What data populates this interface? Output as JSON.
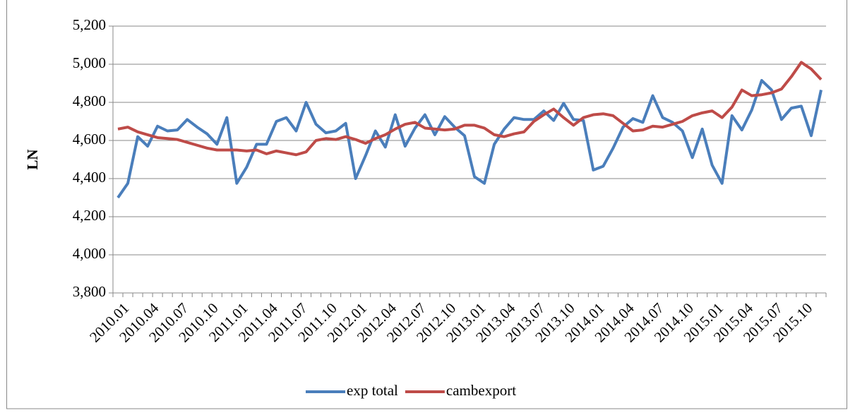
{
  "chart_data": {
    "type": "line",
    "y_label": "LN",
    "categories": [
      "2010.01",
      null,
      null,
      "2010.04",
      null,
      null,
      "2010.07",
      null,
      null,
      "2010.10",
      null,
      null,
      "2011.01",
      null,
      null,
      "2011.04",
      null,
      null,
      "2011.07",
      null,
      null,
      "2011.10",
      null,
      null,
      "2012.01",
      null,
      null,
      "2012.04",
      null,
      null,
      "2012.07",
      null,
      null,
      "2012.10",
      null,
      null,
      "2013.01",
      null,
      null,
      "2013.04",
      null,
      null,
      "2013.07",
      null,
      null,
      "2013.10",
      null,
      null,
      "2014.01",
      null,
      null,
      "2014.04",
      null,
      null,
      "2014.07",
      null,
      null,
      "2014.10",
      null,
      null,
      "2015.01",
      null,
      null,
      "2015.04",
      null,
      null,
      "2015.07",
      null,
      null,
      "2015.10",
      null,
      null
    ],
    "series": [
      {
        "name": "exp total",
        "color": "#4a7ebb",
        "values": [
          4300,
          4375,
          4620,
          4570,
          4675,
          4650,
          4655,
          4710,
          4670,
          4635,
          4580,
          4720,
          4375,
          4460,
          4580,
          4580,
          4700,
          4720,
          4650,
          4800,
          4685,
          4640,
          4650,
          4690,
          4400,
          4520,
          4650,
          4565,
          4735,
          4570,
          4665,
          4735,
          4630,
          4725,
          4670,
          4625,
          4410,
          4375,
          4580,
          4660,
          4720,
          4710,
          4710,
          4755,
          4705,
          4795,
          4710,
          4705,
          4445,
          4465,
          4560,
          4670,
          4715,
          4695,
          4835,
          4720,
          4695,
          4650,
          4510,
          4660,
          4470,
          4375,
          4730,
          4655,
          4760,
          4915,
          4865,
          4710,
          4770,
          4780,
          4625,
          4865
        ]
      },
      {
        "name": "cambexport",
        "color": "#be4b48",
        "values": [
          4660,
          4670,
          4645,
          4630,
          4615,
          4610,
          4605,
          4590,
          4575,
          4560,
          4550,
          4550,
          4550,
          4545,
          4550,
          4530,
          4545,
          4535,
          4525,
          4540,
          4600,
          4610,
          4605,
          4620,
          4605,
          4585,
          4610,
          4630,
          4660,
          4685,
          4695,
          4665,
          4660,
          4655,
          4660,
          4680,
          4680,
          4665,
          4630,
          4620,
          4635,
          4645,
          4700,
          4735,
          4765,
          4720,
          4680,
          4720,
          4735,
          4740,
          4730,
          4690,
          4650,
          4655,
          4675,
          4670,
          4685,
          4700,
          4730,
          4745,
          4755,
          4720,
          4775,
          4865,
          4835,
          4840,
          4850,
          4870,
          4935,
          5010,
          4975,
          4920
        ]
      }
    ],
    "ylim": [
      3800,
      5200
    ],
    "yticks": [
      {
        "value": 3800,
        "label": "3,800"
      },
      {
        "value": 4000,
        "label": "4,000"
      },
      {
        "value": 4200,
        "label": "4,200"
      },
      {
        "value": 4400,
        "label": "4,400"
      },
      {
        "value": 4600,
        "label": "4,600"
      },
      {
        "value": 4800,
        "label": "4,800"
      },
      {
        "value": 5000,
        "label": "5,000"
      },
      {
        "value": 5200,
        "label": "5,200"
      }
    ],
    "grid": true,
    "legend": "bottom"
  }
}
